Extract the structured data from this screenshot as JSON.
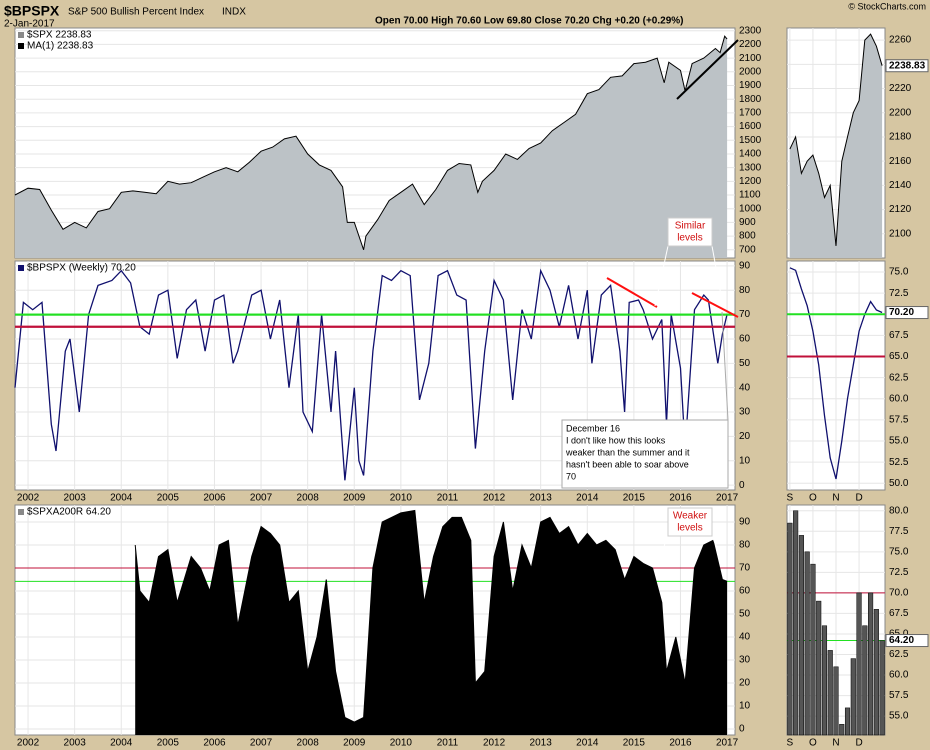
{
  "header": {
    "title": "$BPSPX",
    "subtitle": "S&P 500 Bullish Percent Index",
    "exchange": "INDX",
    "date": "2-Jan-2017",
    "quote": "Open 70.00  High 70.60  Low 69.80  Close 70.20  Chg +0.20 (+0.29%)",
    "credit": "© StockCharts.com"
  },
  "annotations": {
    "similar": [
      "Similar",
      "levels"
    ],
    "weaker": [
      "Weaker",
      "levels"
    ],
    "note": [
      "December 16",
      "I don't like how this looks",
      "weaker than the summer and it",
      "hasn't been able to soar above",
      "70"
    ]
  },
  "chart_data": [
    {
      "type": "area",
      "legend": [
        "$SPX 2238.83",
        "MA(1) 2238.83"
      ],
      "color": "#000000",
      "fill": "#bcc2c6",
      "xlim": [
        2001.72,
        2017.17
      ],
      "ylim": [
        640,
        2320
      ],
      "yticks": [
        700,
        800,
        900,
        1000,
        1100,
        1200,
        1300,
        1400,
        1500,
        1600,
        1700,
        1800,
        1900,
        2000,
        2100,
        2200,
        2300
      ],
      "x": [
        2001.72,
        2002.0,
        2002.25,
        2002.5,
        2002.75,
        2003.0,
        2003.25,
        2003.5,
        2003.75,
        2004.0,
        2004.25,
        2004.5,
        2004.75,
        2005.0,
        2005.25,
        2005.5,
        2005.75,
        2006.0,
        2006.25,
        2006.5,
        2006.75,
        2007.0,
        2007.25,
        2007.5,
        2007.75,
        2008.0,
        2008.25,
        2008.5,
        2008.75,
        2008.85,
        2009.0,
        2009.2,
        2009.25,
        2009.5,
        2009.75,
        2010.0,
        2010.25,
        2010.5,
        2010.75,
        2011.0,
        2011.25,
        2011.5,
        2011.65,
        2011.75,
        2012.0,
        2012.25,
        2012.5,
        2012.75,
        2013.0,
        2013.25,
        2013.5,
        2013.75,
        2014.0,
        2014.25,
        2014.5,
        2014.75,
        2015.0,
        2015.25,
        2015.5,
        2015.65,
        2015.75,
        2016.0,
        2016.1,
        2016.25,
        2016.5,
        2016.75,
        2016.85,
        2016.95,
        2017.0
      ],
      "values": [
        1100,
        1150,
        1140,
        990,
        850,
        900,
        860,
        980,
        1000,
        1120,
        1130,
        1120,
        1110,
        1200,
        1180,
        1190,
        1230,
        1270,
        1300,
        1270,
        1340,
        1420,
        1450,
        1510,
        1530,
        1400,
        1320,
        1280,
        1160,
        900,
        900,
        700,
        800,
        920,
        1060,
        1120,
        1180,
        1030,
        1140,
        1280,
        1330,
        1320,
        1120,
        1200,
        1280,
        1400,
        1360,
        1440,
        1480,
        1570,
        1630,
        1690,
        1840,
        1870,
        1960,
        1970,
        2060,
        2070,
        2100,
        1920,
        2070,
        2010,
        1860,
        2060,
        2100,
        2170,
        2140,
        2260,
        2238.83
      ]
    },
    {
      "type": "line",
      "legend": [
        "$BPSPX (Weekly) 70.20"
      ],
      "color": "#10106e",
      "xlim": [
        2001.72,
        2017.17
      ],
      "ylim": [
        -2,
        92
      ],
      "yticks": [
        0,
        10,
        20,
        30,
        40,
        50,
        60,
        70,
        80,
        90
      ],
      "xticks": [
        2002,
        2003,
        2004,
        2005,
        2006,
        2007,
        2008,
        2009,
        2010,
        2011,
        2012,
        2013,
        2014,
        2015,
        2016,
        2017
      ],
      "hlines": [
        {
          "value": 70,
          "color": "#22e022"
        },
        {
          "value": 65,
          "color": "#c0103a"
        }
      ],
      "x": [
        2001.72,
        2001.9,
        2002.1,
        2002.3,
        2002.5,
        2002.6,
        2002.8,
        2002.9,
        2003.1,
        2003.3,
        2003.5,
        2003.8,
        2004.0,
        2004.2,
        2004.4,
        2004.6,
        2004.8,
        2005.0,
        2005.2,
        2005.4,
        2005.6,
        2005.8,
        2006.0,
        2006.2,
        2006.4,
        2006.5,
        2006.8,
        2007.0,
        2007.2,
        2007.4,
        2007.6,
        2007.8,
        2007.9,
        2008.1,
        2008.3,
        2008.5,
        2008.6,
        2008.8,
        2009.0,
        2009.1,
        2009.2,
        2009.4,
        2009.6,
        2009.8,
        2010.0,
        2010.2,
        2010.4,
        2010.6,
        2010.8,
        2011.0,
        2011.2,
        2011.4,
        2011.6,
        2011.8,
        2012.0,
        2012.2,
        2012.4,
        2012.6,
        2012.8,
        2013.0,
        2013.2,
        2013.4,
        2013.6,
        2013.8,
        2014.0,
        2014.1,
        2014.3,
        2014.5,
        2014.7,
        2014.8,
        2014.9,
        2015.1,
        2015.2,
        2015.4,
        2015.6,
        2015.7,
        2015.8,
        2016.0,
        2016.1,
        2016.3,
        2016.5,
        2016.6,
        2016.8,
        2016.9,
        2017.0
      ],
      "values": [
        40,
        75,
        72,
        75,
        25,
        14,
        55,
        60,
        30,
        70,
        82,
        84,
        88,
        83,
        65,
        62,
        78,
        80,
        52,
        72,
        76,
        55,
        76,
        78,
        50,
        55,
        78,
        80,
        60,
        76,
        40,
        70,
        30,
        22,
        70,
        30,
        55,
        2,
        40,
        10,
        4,
        55,
        86,
        84,
        88,
        86,
        35,
        50,
        86,
        88,
        78,
        76,
        15,
        55,
        84,
        76,
        35,
        72,
        60,
        88,
        80,
        65,
        82,
        60,
        80,
        50,
        78,
        82,
        55,
        30,
        75,
        76,
        72,
        60,
        68,
        25,
        70,
        48,
        15,
        72,
        78,
        76,
        50,
        62,
        70.2
      ]
    },
    {
      "type": "area",
      "legend": [
        "$SPXA200R 64.20"
      ],
      "color": "#000000",
      "fill": "#000000",
      "xlim": [
        2001.72,
        2017.17
      ],
      "ylim": [
        -2.6,
        97.4
      ],
      "yticks": [
        0,
        10,
        20,
        30,
        40,
        50,
        60,
        70,
        80,
        90
      ],
      "xticks": [
        2002,
        2003,
        2004,
        2005,
        2006,
        2007,
        2008,
        2009,
        2010,
        2011,
        2012,
        2013,
        2014,
        2015,
        2016,
        2017
      ],
      "hlines": [
        {
          "value": 70,
          "color": "#c0103a"
        },
        {
          "value": 64.2,
          "color": "#22e022"
        }
      ],
      "x": [
        2004.3,
        2004.4,
        2004.6,
        2004.8,
        2005.0,
        2005.2,
        2005.5,
        2005.7,
        2005.9,
        2006.1,
        2006.3,
        2006.5,
        2006.8,
        2007.0,
        2007.2,
        2007.4,
        2007.6,
        2007.8,
        2008.0,
        2008.2,
        2008.4,
        2008.6,
        2008.8,
        2009.0,
        2009.2,
        2009.4,
        2009.6,
        2009.8,
        2010.0,
        2010.3,
        2010.5,
        2010.7,
        2010.9,
        2011.1,
        2011.3,
        2011.5,
        2011.6,
        2011.8,
        2012.0,
        2012.2,
        2012.4,
        2012.6,
        2012.8,
        2013.0,
        2013.2,
        2013.4,
        2013.6,
        2013.8,
        2014.0,
        2014.2,
        2014.4,
        2014.6,
        2014.8,
        2015.0,
        2015.2,
        2015.4,
        2015.6,
        2015.7,
        2015.9,
        2016.0,
        2016.1,
        2016.3,
        2016.5,
        2016.7,
        2016.9,
        2017.0
      ],
      "values": [
        80,
        60,
        55,
        75,
        78,
        55,
        75,
        70,
        60,
        80,
        82,
        45,
        75,
        88,
        85,
        80,
        55,
        60,
        25,
        40,
        65,
        25,
        5,
        3,
        5,
        70,
        90,
        92,
        94,
        95,
        55,
        75,
        88,
        92,
        92,
        82,
        20,
        25,
        75,
        90,
        60,
        80,
        70,
        90,
        92,
        85,
        88,
        80,
        85,
        80,
        82,
        78,
        65,
        75,
        72,
        70,
        55,
        25,
        40,
        30,
        20,
        70,
        80,
        82,
        65,
        64.2
      ]
    },
    {
      "type": "area",
      "color": "#000000",
      "fill": "#bcc2c6",
      "last_label": "2238.83",
      "ylim": [
        2080,
        2270
      ],
      "yticks": [
        2100,
        2120,
        2140,
        2160,
        2180,
        2200,
        2220,
        2240,
        2260
      ],
      "categories": [
        "S",
        null,
        null,
        null,
        "O",
        null,
        null,
        null,
        "N",
        null,
        null,
        null,
        "D",
        null,
        null,
        null,
        null
      ],
      "values": [
        2170,
        2180,
        2150,
        2160,
        2165,
        2150,
        2130,
        2140,
        2090,
        2160,
        2180,
        2200,
        2210,
        2260,
        2265,
        2255,
        2238.83
      ]
    },
    {
      "type": "line",
      "color": "#10106e",
      "last_label": "70.20",
      "ylim": [
        49.2,
        76.3
      ],
      "yticks": [
        {
          "value": 50,
          "label": "50.0"
        },
        {
          "value": 52.5,
          "label": "52.5"
        },
        {
          "value": 55,
          "label": "55.0"
        },
        {
          "value": 57.5,
          "label": "57.5"
        },
        {
          "value": 60,
          "label": "60.0"
        },
        {
          "value": 62.5,
          "label": "62.5"
        },
        {
          "value": 65,
          "label": "65.0"
        },
        {
          "value": 67.5,
          "label": "67.5"
        },
        {
          "value": 70,
          "label": "70.0"
        },
        {
          "value": 72.5,
          "label": "72.5"
        },
        {
          "value": 75,
          "label": "75.0"
        }
      ],
      "hlines": [
        {
          "value": 70,
          "color": "#22e022"
        },
        {
          "value": 65,
          "color": "#c0103a"
        }
      ],
      "categories": [
        "S",
        null,
        null,
        null,
        "O",
        null,
        null,
        null,
        "N",
        null,
        null,
        null,
        "D",
        null,
        null,
        null,
        null
      ],
      "values": [
        75.5,
        75.2,
        73,
        71,
        68,
        64,
        58,
        53,
        50.5,
        55,
        60,
        64,
        68,
        70,
        71.5,
        70.5,
        70.2
      ]
    },
    {
      "type": "bar",
      "color": "#000000",
      "fill": "#555555",
      "last_label": "64.20",
      "ylim": [
        52.7,
        80.7
      ],
      "yticks": [
        {
          "value": 55,
          "label": "55.0"
        },
        {
          "value": 57.5,
          "label": "57.5"
        },
        {
          "value": 60,
          "label": "60.0"
        },
        {
          "value": 62.5,
          "label": "62.5"
        },
        {
          "value": 65,
          "label": "65.0"
        },
        {
          "value": 67.5,
          "label": "67.5"
        },
        {
          "value": 70,
          "label": "70.0"
        },
        {
          "value": 72.5,
          "label": "72.5"
        },
        {
          "value": 75,
          "label": "75.0"
        },
        {
          "value": 77.5,
          "label": "77.5"
        },
        {
          "value": 80,
          "label": "80.0"
        }
      ],
      "hlines": [
        {
          "value": 70,
          "color": "#c0103a"
        },
        {
          "value": 64.2,
          "color": "#22e022"
        }
      ],
      "categories": [
        "S",
        null,
        null,
        null,
        "O",
        null,
        null,
        null,
        "N",
        null,
        null,
        null,
        "D",
        null,
        null,
        null,
        null
      ],
      "values": [
        78.5,
        80,
        77,
        75,
        73.5,
        69,
        66,
        63,
        61,
        54,
        56,
        62,
        70,
        66,
        70,
        68,
        64.2
      ]
    }
  ]
}
